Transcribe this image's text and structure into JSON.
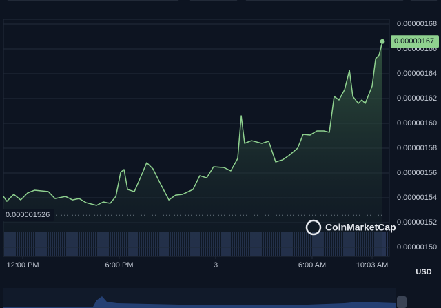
{
  "chart_data": {
    "type": "area",
    "currency": "USD",
    "watermark": "CoinMarketCap",
    "color": "#8fd18f",
    "grid": true,
    "x": [
      -1.2,
      -0.99,
      -0.56,
      -0.13,
      0.3,
      0.73,
      1.59,
      2.01,
      2.66,
      3.09,
      3.51,
      3.94,
      4.59,
      5.01,
      5.44,
      5.79,
      6.09,
      6.3,
      6.52,
      6.94,
      7.37,
      7.71,
      8.1,
      8.53,
      9.09,
      9.51,
      9.94,
      10.59,
      11.01,
      11.44,
      11.87,
      12.51,
      12.94,
      13.37,
      13.59,
      13.8,
      14.23,
      14.87,
      15.3,
      15.73,
      16.16,
      16.59,
      17.1,
      17.44,
      17.87,
      18.3,
      18.73,
      19.07,
      19.37,
      19.67,
      20.02,
      20.32,
      20.53,
      20.87,
      21.09,
      21.3,
      21.73,
      21.95,
      22.16,
      22.37
    ],
    "values": [
      1.5411e-06,
      1.5372e-06,
      1.5428e-06,
      1.5383e-06,
      1.5439e-06,
      1.5461e-06,
      1.545e-06,
      1.5394e-06,
      1.5411e-06,
      1.5383e-06,
      1.5394e-06,
      1.5361e-06,
      1.5339e-06,
      1.5367e-06,
      1.5356e-06,
      1.5411e-06,
      1.5606e-06,
      1.5628e-06,
      1.5467e-06,
      1.545e-06,
      1.5578e-06,
      1.5683e-06,
      1.5633e-06,
      1.5522e-06,
      1.5383e-06,
      1.5422e-06,
      1.5428e-06,
      1.5467e-06,
      1.5578e-06,
      1.5561e-06,
      1.565e-06,
      1.5644e-06,
      1.5617e-06,
      1.5717e-06,
      1.6061e-06,
      1.5839e-06,
      1.5861e-06,
      1.5839e-06,
      1.5856e-06,
      1.5689e-06,
      1.5706e-06,
      1.5744e-06,
      1.58e-06,
      1.5911e-06,
      1.5906e-06,
      1.5939e-06,
      1.5939e-06,
      1.5928e-06,
      1.6217e-06,
      1.6189e-06,
      1.6272e-06,
      1.6428e-06,
      1.6217e-06,
      1.6161e-06,
      1.6189e-06,
      1.6161e-06,
      1.63e-06,
      1.6522e-06,
      1.655e-06,
      1.666e-06
    ],
    "current_price_label": "0.00000167",
    "min_marker": {
      "value": 1.526e-06,
      "label": "0.000001526"
    },
    "xlim": [
      -1.2,
      22.8
    ],
    "xticks": [
      {
        "value": 0,
        "label": "12:00 PM"
      },
      {
        "value": 6,
        "label": "6:00 PM"
      },
      {
        "value": 12,
        "label": "3"
      },
      {
        "value": 18,
        "label": "6:00 AM"
      },
      {
        "value": 21.73,
        "label": "10:03 AM"
      }
    ],
    "ylim": [
      1.4928e-06,
      1.6839e-06
    ],
    "yticks": [
      {
        "value": 1.5e-06,
        "label": "0.00000150"
      },
      {
        "value": 1.52e-06,
        "label": "0.00000152"
      },
      {
        "value": 1.54e-06,
        "label": "0.00000154"
      },
      {
        "value": 1.56e-06,
        "label": "0.00000156"
      },
      {
        "value": 1.58e-06,
        "label": "0.00000158"
      },
      {
        "value": 1.6e-06,
        "label": "0.00000160"
      },
      {
        "value": 1.62e-06,
        "label": "0.00000162"
      },
      {
        "value": 1.64e-06,
        "label": "0.00000164"
      },
      {
        "value": 1.66e-06,
        "label": "0.00000166"
      },
      {
        "value": 1.68e-06,
        "label": "0.00000168"
      }
    ]
  }
}
